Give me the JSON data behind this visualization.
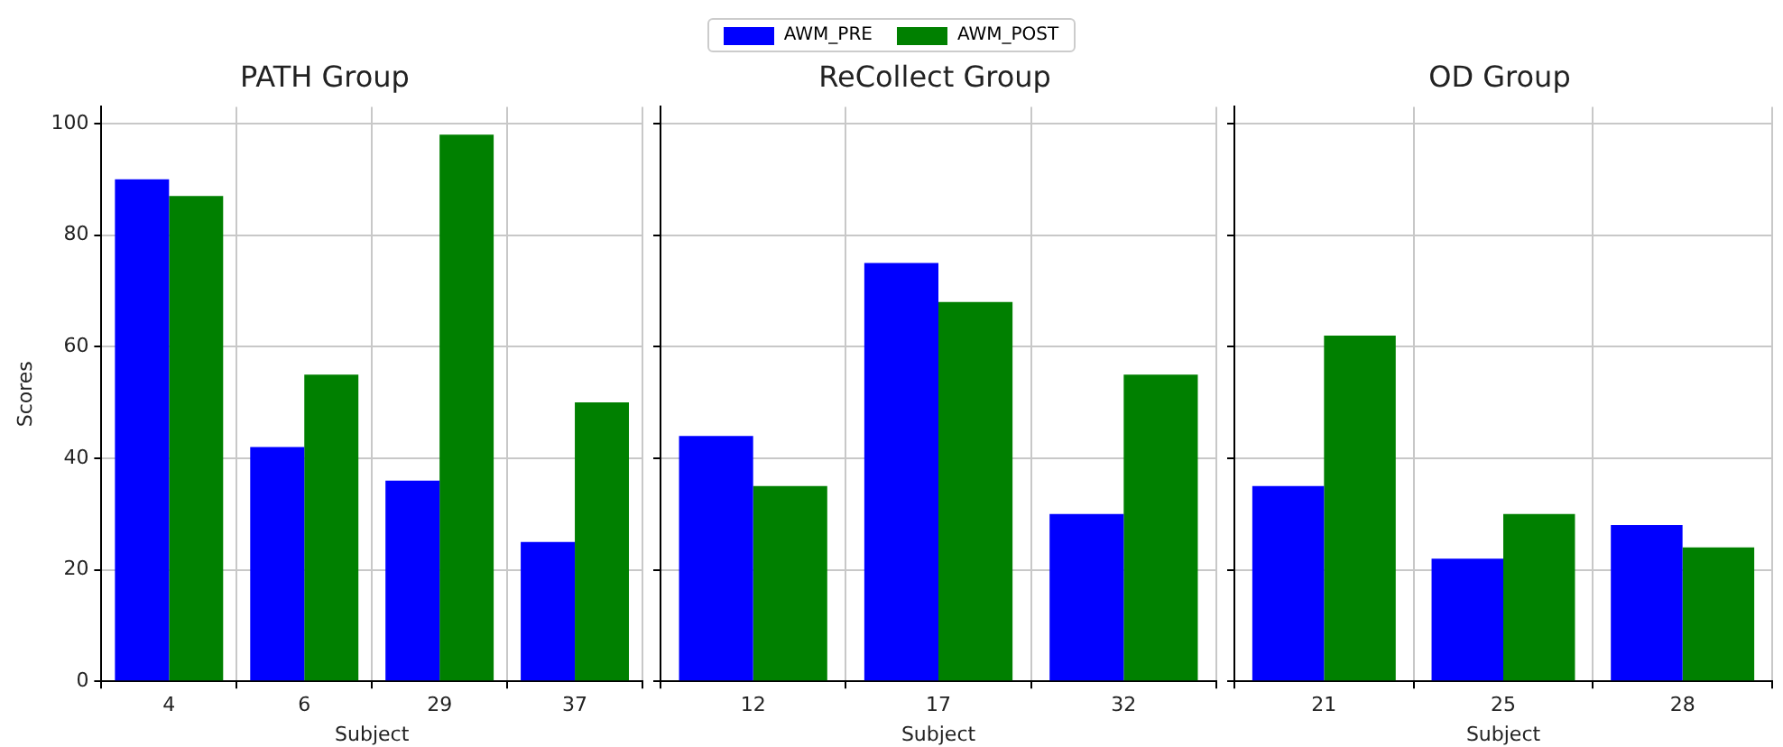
{
  "chart_data": [
    {
      "type": "bar",
      "title": "PATH Group",
      "xlabel": "Subject",
      "ylabel": "Scores",
      "categories": [
        "4",
        "6",
        "29",
        "37"
      ],
      "series": [
        {
          "name": "AWM_PRE",
          "color": "#0000ff",
          "values": [
            90,
            42,
            36,
            25
          ]
        },
        {
          "name": "AWM_POST",
          "color": "#008000",
          "values": [
            87,
            55,
            98,
            50
          ]
        }
      ],
      "ylim": [
        0,
        103
      ],
      "yticks": [
        0,
        20,
        40,
        60,
        80,
        100
      ],
      "grid": true,
      "legend": "top"
    },
    {
      "type": "bar",
      "title": "ReCollect Group",
      "xlabel": "Subject",
      "categories": [
        "12",
        "17",
        "32"
      ],
      "series": [
        {
          "color": "#0000ff",
          "values": [
            44,
            75,
            30
          ]
        },
        {
          "color": "#008000",
          "values": [
            35,
            68,
            55
          ]
        }
      ],
      "ylim": [
        0,
        103
      ],
      "yticks": [
        0,
        20,
        40,
        60,
        80,
        100
      ],
      "grid": true,
      "tick_labels": "x"
    },
    {
      "type": "bar",
      "title": "OD Group",
      "xlabel": "Subject",
      "categories": [
        "21",
        "25",
        "28"
      ],
      "series": [
        {
          "color": "#0000ff",
          "values": [
            35,
            22,
            28
          ]
        },
        {
          "color": "#008000",
          "values": [
            62,
            30,
            24
          ]
        }
      ],
      "ylim": [
        0,
        103
      ],
      "yticks": [
        0,
        20,
        40,
        60,
        80,
        100
      ],
      "grid": true,
      "tick_labels": "x"
    }
  ]
}
